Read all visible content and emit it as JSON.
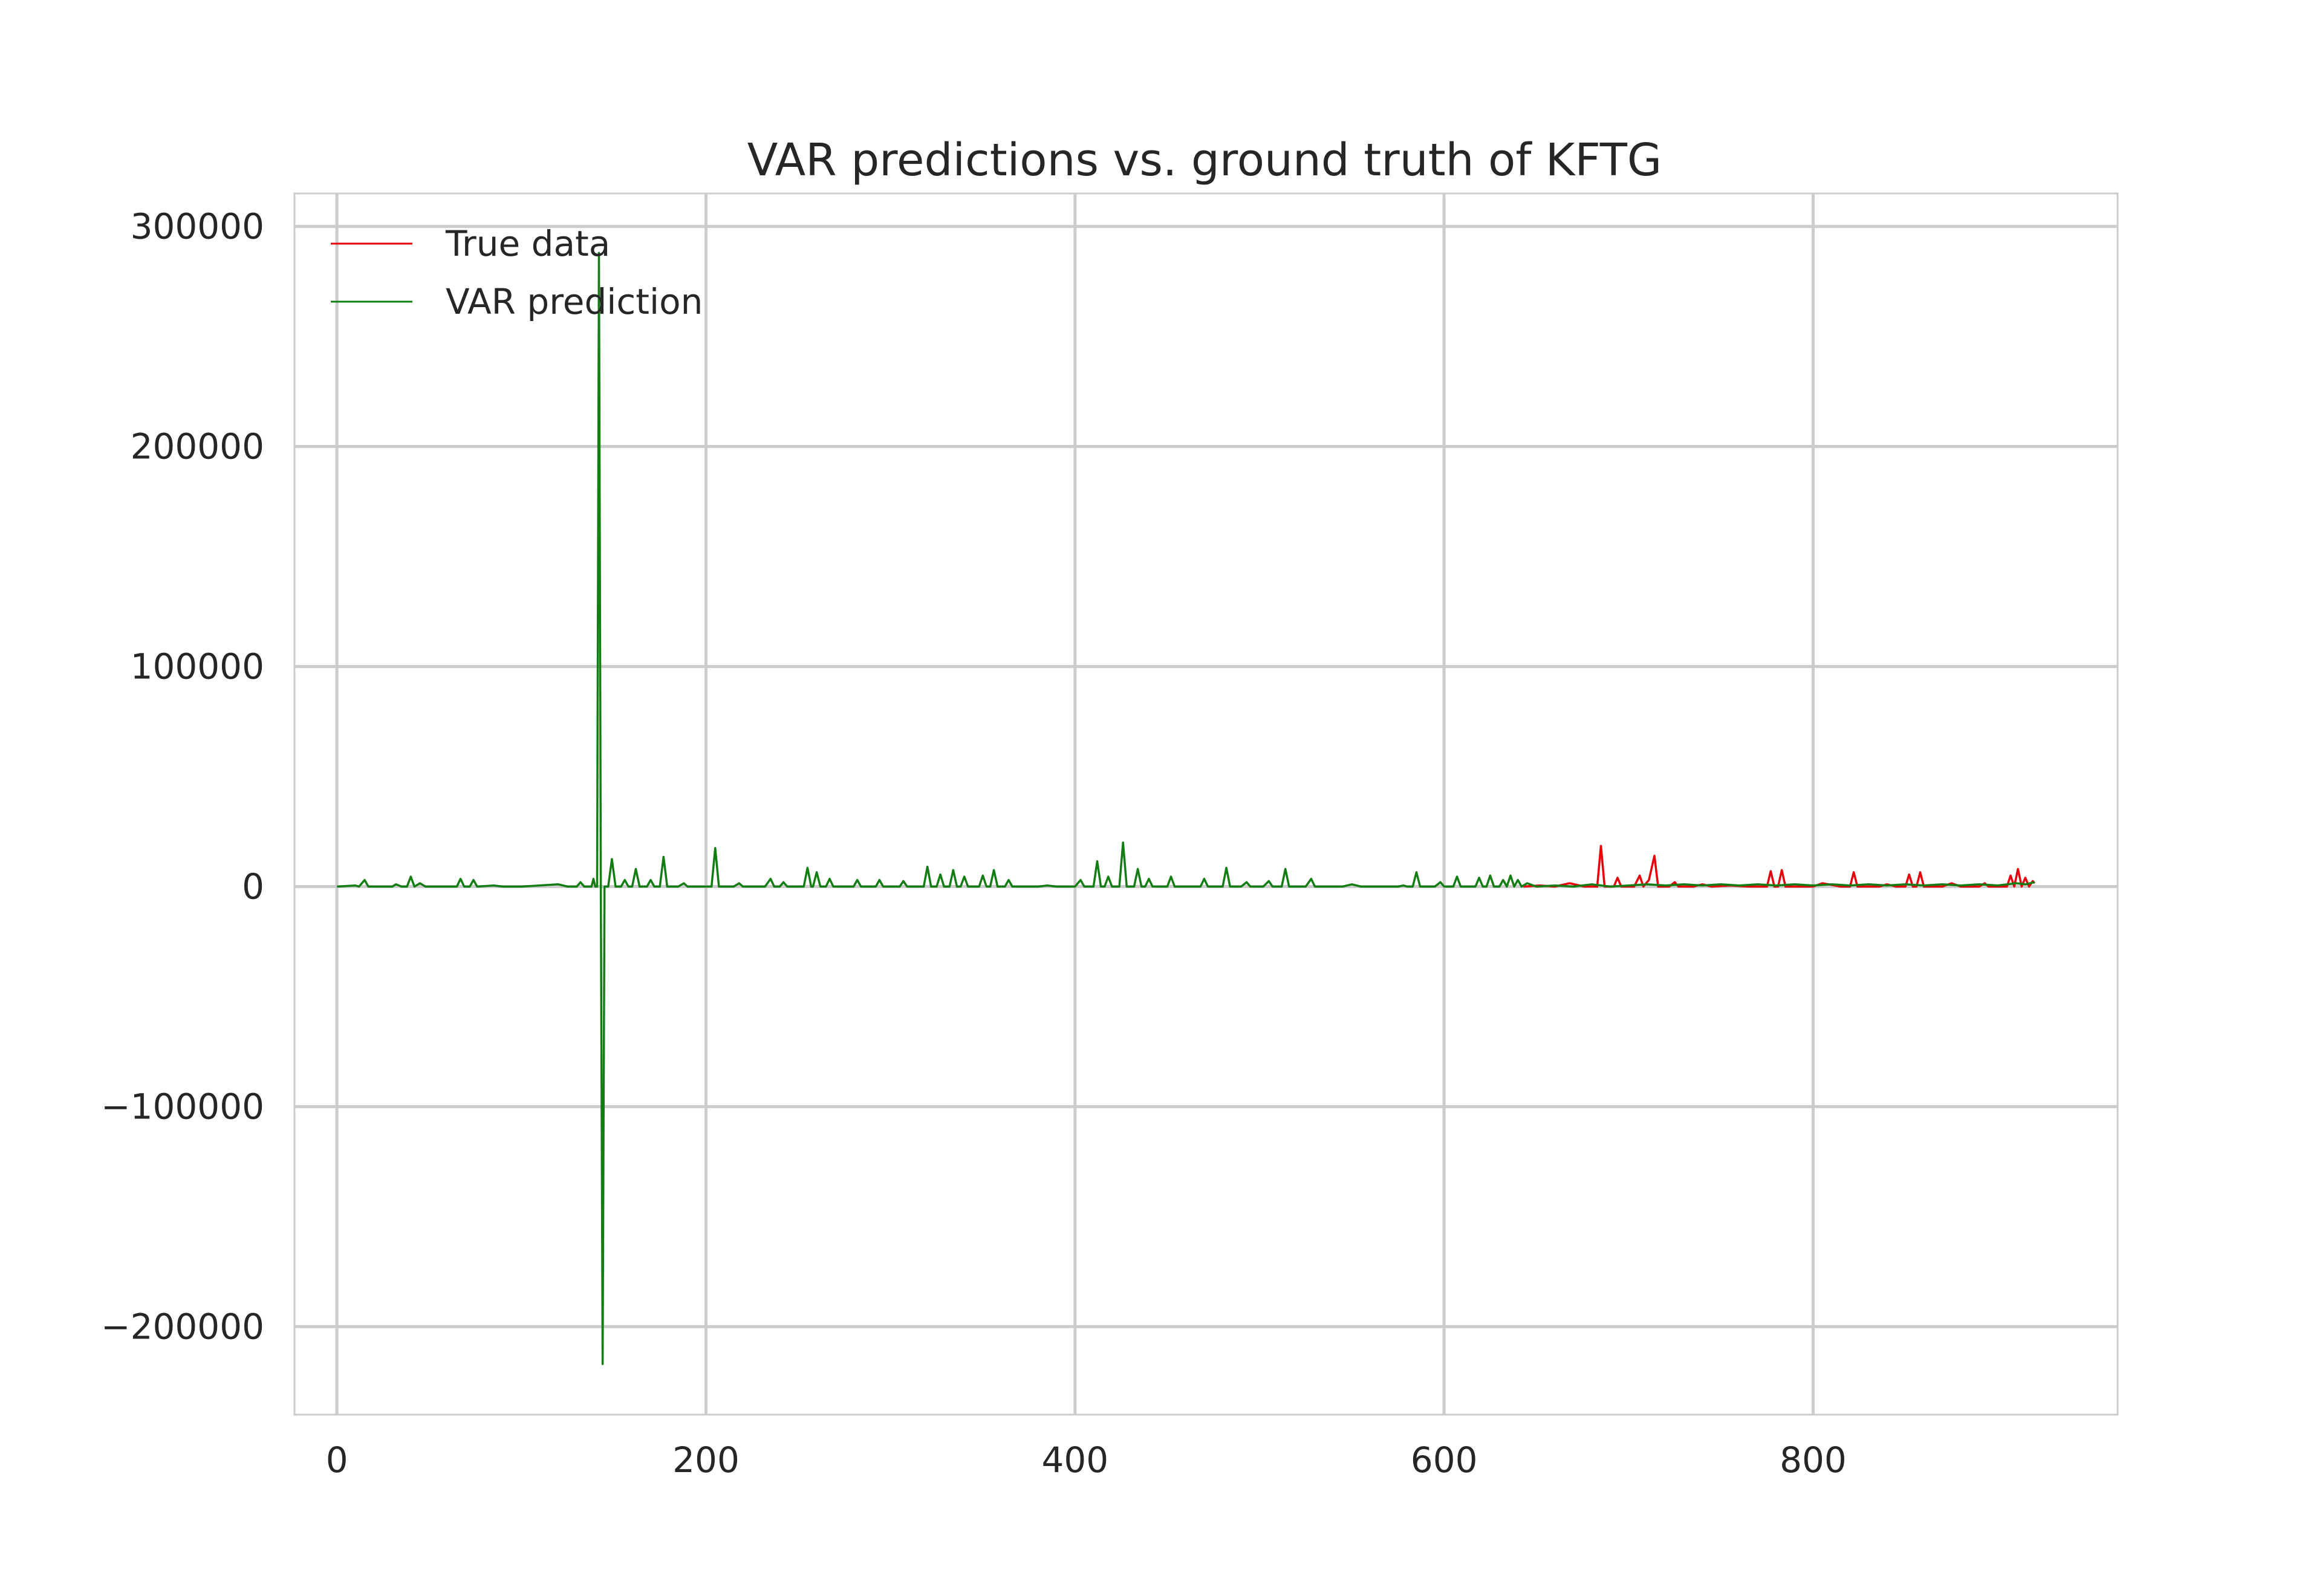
{
  "chart_data": {
    "type": "line",
    "title": "VAR predictions vs. ground truth of KFTG",
    "xlabel": "",
    "ylabel": "",
    "xlim": [
      -23,
      965
    ],
    "ylim": [
      -240000,
      315000
    ],
    "x_ticks": [
      0,
      200,
      400,
      600,
      800
    ],
    "y_ticks": [
      300000,
      200000,
      100000,
      0,
      -100000,
      -200000
    ],
    "x_tick_labels": [
      "0",
      "200",
      "400",
      "600",
      "800"
    ],
    "y_tick_labels": [
      "300000",
      "200000",
      "100000",
      "0",
      "−100000",
      "−200000"
    ],
    "grid": true,
    "legend": {
      "placement": "upper-left",
      "entries": [
        {
          "label": "True data",
          "color": "#e8000b"
        },
        {
          "label": "VAR prediction",
          "color": "#127d12"
        }
      ]
    },
    "series": [
      {
        "name": "True data",
        "color": "#e8000b",
        "points": [
          [
            643,
            0
          ],
          [
            652,
            500
          ],
          [
            660,
            0
          ],
          [
            668,
            1500
          ],
          [
            676,
            0
          ],
          [
            683,
            0
          ],
          [
            685,
            18500
          ],
          [
            687,
            0
          ],
          [
            692,
            0
          ],
          [
            694,
            4000
          ],
          [
            696,
            0
          ],
          [
            703,
            0
          ],
          [
            706,
            5000
          ],
          [
            708,
            0
          ],
          [
            711,
            3000
          ],
          [
            714,
            14000
          ],
          [
            716,
            0
          ],
          [
            722,
            0
          ],
          [
            725,
            2000
          ],
          [
            727,
            0
          ],
          [
            735,
            0
          ],
          [
            740,
            1000
          ],
          [
            745,
            0
          ],
          [
            755,
            500
          ],
          [
            765,
            0
          ],
          [
            775,
            0
          ],
          [
            777,
            7000
          ],
          [
            779,
            0
          ],
          [
            781,
            0
          ],
          [
            783,
            7500
          ],
          [
            785,
            0
          ],
          [
            800,
            0
          ],
          [
            805,
            1500
          ],
          [
            815,
            0
          ],
          [
            820,
            0
          ],
          [
            822,
            6500
          ],
          [
            824,
            0
          ],
          [
            836,
            0
          ],
          [
            840,
            1000
          ],
          [
            845,
            0
          ],
          [
            850,
            0
          ],
          [
            852,
            5500
          ],
          [
            854,
            0
          ],
          [
            856,
            0
          ],
          [
            858,
            6500
          ],
          [
            860,
            0
          ],
          [
            870,
            0
          ],
          [
            875,
            1500
          ],
          [
            880,
            0
          ],
          [
            890,
            0
          ],
          [
            893,
            1500
          ],
          [
            895,
            0
          ],
          [
            905,
            0
          ],
          [
            907,
            5000
          ],
          [
            909,
            0
          ],
          [
            911,
            8000
          ],
          [
            913,
            0
          ],
          [
            915,
            4000
          ],
          [
            917,
            0
          ],
          [
            919,
            2500
          ],
          [
            920,
            1500
          ]
        ]
      },
      {
        "name": "VAR prediction",
        "color": "#127d12",
        "points": [
          [
            0,
            0
          ],
          [
            10,
            500
          ],
          [
            12,
            0
          ],
          [
            15,
            3000
          ],
          [
            17,
            0
          ],
          [
            30,
            0
          ],
          [
            32,
            1000
          ],
          [
            35,
            0
          ],
          [
            38,
            0
          ],
          [
            40,
            4500
          ],
          [
            42,
            0
          ],
          [
            45,
            1500
          ],
          [
            48,
            0
          ],
          [
            65,
            0
          ],
          [
            67,
            3500
          ],
          [
            69,
            0
          ],
          [
            72,
            0
          ],
          [
            74,
            3000
          ],
          [
            76,
            0
          ],
          [
            85,
            500
          ],
          [
            90,
            0
          ],
          [
            100,
            0
          ],
          [
            120,
            1000
          ],
          [
            125,
            0
          ],
          [
            130,
            0
          ],
          [
            132,
            2000
          ],
          [
            134,
            0
          ],
          [
            138,
            0
          ],
          [
            139,
            3500
          ],
          [
            140,
            0
          ],
          [
            141,
            0
          ],
          [
            142,
            288000
          ],
          [
            143,
            0
          ],
          [
            144,
            -217000
          ],
          [
            145,
            0
          ],
          [
            147,
            0
          ],
          [
            149,
            12500
          ],
          [
            151,
            0
          ],
          [
            154,
            0
          ],
          [
            156,
            3000
          ],
          [
            158,
            0
          ],
          [
            160,
            0
          ],
          [
            162,
            8000
          ],
          [
            164,
            0
          ],
          [
            168,
            0
          ],
          [
            170,
            3000
          ],
          [
            172,
            0
          ],
          [
            175,
            0
          ],
          [
            177,
            13500
          ],
          [
            179,
            0
          ],
          [
            185,
            0
          ],
          [
            188,
            1500
          ],
          [
            190,
            0
          ],
          [
            203,
            0
          ],
          [
            205,
            17500
          ],
          [
            207,
            0
          ],
          [
            215,
            0
          ],
          [
            218,
            1500
          ],
          [
            220,
            0
          ],
          [
            232,
            0
          ],
          [
            235,
            3500
          ],
          [
            237,
            0
          ],
          [
            240,
            0
          ],
          [
            242,
            2000
          ],
          [
            244,
            0
          ],
          [
            253,
            0
          ],
          [
            255,
            8500
          ],
          [
            257,
            0
          ],
          [
            258,
            0
          ],
          [
            260,
            6500
          ],
          [
            262,
            0
          ],
          [
            265,
            0
          ],
          [
            267,
            3500
          ],
          [
            269,
            0
          ],
          [
            280,
            0
          ],
          [
            282,
            3000
          ],
          [
            284,
            0
          ],
          [
            292,
            0
          ],
          [
            294,
            3000
          ],
          [
            296,
            0
          ],
          [
            305,
            0
          ],
          [
            307,
            2500
          ],
          [
            309,
            0
          ],
          [
            318,
            0
          ],
          [
            320,
            9000
          ],
          [
            322,
            0
          ],
          [
            325,
            0
          ],
          [
            327,
            5500
          ],
          [
            329,
            0
          ],
          [
            332,
            0
          ],
          [
            334,
            7500
          ],
          [
            336,
            0
          ],
          [
            338,
            0
          ],
          [
            340,
            4500
          ],
          [
            342,
            0
          ],
          [
            348,
            0
          ],
          [
            350,
            5000
          ],
          [
            352,
            0
          ],
          [
            354,
            0
          ],
          [
            356,
            7500
          ],
          [
            358,
            0
          ],
          [
            362,
            0
          ],
          [
            364,
            3000
          ],
          [
            366,
            0
          ],
          [
            380,
            0
          ],
          [
            385,
            500
          ],
          [
            390,
            0
          ],
          [
            400,
            0
          ],
          [
            403,
            3000
          ],
          [
            405,
            0
          ],
          [
            410,
            0
          ],
          [
            412,
            11500
          ],
          [
            414,
            0
          ],
          [
            416,
            0
          ],
          [
            418,
            4500
          ],
          [
            420,
            0
          ],
          [
            424,
            0
          ],
          [
            426,
            20000
          ],
          [
            428,
            0
          ],
          [
            432,
            0
          ],
          [
            434,
            8000
          ],
          [
            436,
            0
          ],
          [
            438,
            0
          ],
          [
            440,
            3500
          ],
          [
            442,
            0
          ],
          [
            450,
            0
          ],
          [
            452,
            4500
          ],
          [
            454,
            0
          ],
          [
            468,
            0
          ],
          [
            470,
            3500
          ],
          [
            472,
            0
          ],
          [
            480,
            0
          ],
          [
            482,
            8500
          ],
          [
            484,
            0
          ],
          [
            490,
            0
          ],
          [
            493,
            2000
          ],
          [
            495,
            0
          ],
          [
            502,
            0
          ],
          [
            505,
            2500
          ],
          [
            507,
            0
          ],
          [
            512,
            0
          ],
          [
            514,
            8000
          ],
          [
            516,
            0
          ],
          [
            525,
            0
          ],
          [
            528,
            3500
          ],
          [
            530,
            0
          ],
          [
            545,
            0
          ],
          [
            550,
            1000
          ],
          [
            555,
            0
          ],
          [
            575,
            0
          ],
          [
            578,
            500
          ],
          [
            580,
            0
          ],
          [
            583,
            0
          ],
          [
            585,
            6500
          ],
          [
            587,
            0
          ],
          [
            595,
            0
          ],
          [
            598,
            2000
          ],
          [
            600,
            0
          ],
          [
            605,
            0
          ],
          [
            607,
            4500
          ],
          [
            609,
            0
          ],
          [
            617,
            0
          ],
          [
            619,
            4000
          ],
          [
            621,
            0
          ],
          [
            623,
            0
          ],
          [
            625,
            5000
          ],
          [
            627,
            0
          ],
          [
            630,
            0
          ],
          [
            632,
            3000
          ],
          [
            634,
            0
          ],
          [
            636,
            5000
          ],
          [
            638,
            0
          ],
          [
            640,
            3000
          ],
          [
            642,
            0
          ],
          [
            645,
            1500
          ],
          [
            650,
            0
          ],
          [
            660,
            500
          ],
          [
            670,
            0
          ],
          [
            680,
            1000
          ],
          [
            690,
            0
          ],
          [
            700,
            500
          ],
          [
            710,
            1000
          ],
          [
            720,
            500
          ],
          [
            730,
            1000
          ],
          [
            740,
            500
          ],
          [
            750,
            1000
          ],
          [
            760,
            500
          ],
          [
            770,
            1000
          ],
          [
            780,
            500
          ],
          [
            790,
            1000
          ],
          [
            800,
            500
          ],
          [
            810,
            1000
          ],
          [
            820,
            500
          ],
          [
            830,
            1000
          ],
          [
            840,
            500
          ],
          [
            850,
            1000
          ],
          [
            860,
            500
          ],
          [
            870,
            1000
          ],
          [
            880,
            500
          ],
          [
            890,
            1000
          ],
          [
            900,
            500
          ],
          [
            910,
            1500
          ],
          [
            915,
            1000
          ],
          [
            920,
            2000
          ]
        ]
      }
    ]
  }
}
